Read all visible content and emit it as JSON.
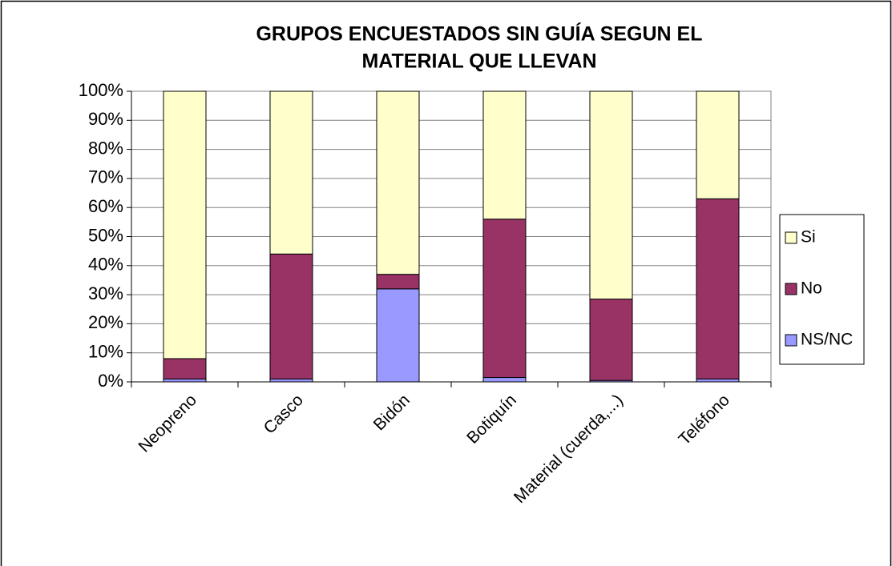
{
  "chart_data": {
    "type": "stacked_bar",
    "title": [
      "GRUPOS ENCUESTADOS SIN GUÍA SEGUN EL",
      "MATERIAL QUE LLEVAN"
    ],
    "categories": [
      "Neopreno",
      "Casco",
      "Bidón",
      "Botiquín",
      "Material (cuerda,...)",
      "Teléfono"
    ],
    "series": [
      {
        "name": "NS/NC",
        "color": "#9999FF",
        "values": [
          1,
          1,
          32,
          1.5,
          0.5,
          1
        ]
      },
      {
        "name": "No",
        "color": "#993366",
        "values": [
          7,
          43,
          5,
          54.5,
          28,
          62
        ]
      },
      {
        "name": "Si",
        "color": "#FFFFCC",
        "values": [
          92,
          56,
          63,
          44,
          71.5,
          37
        ]
      }
    ],
    "ylim": [
      0,
      100
    ],
    "yticks": [
      {
        "value": 0,
        "label": "0%"
      },
      {
        "value": 10,
        "label": "10%"
      },
      {
        "value": 20,
        "label": "20%"
      },
      {
        "value": 30,
        "label": "30%"
      },
      {
        "value": 40,
        "label": "40%"
      },
      {
        "value": 50,
        "label": "50%"
      },
      {
        "value": 60,
        "label": "60%"
      },
      {
        "value": 70,
        "label": "70%"
      },
      {
        "value": 80,
        "label": "80%"
      },
      {
        "value": 90,
        "label": "90%"
      },
      {
        "value": 100,
        "label": "100%"
      }
    ],
    "grid": true,
    "legend": "right"
  }
}
